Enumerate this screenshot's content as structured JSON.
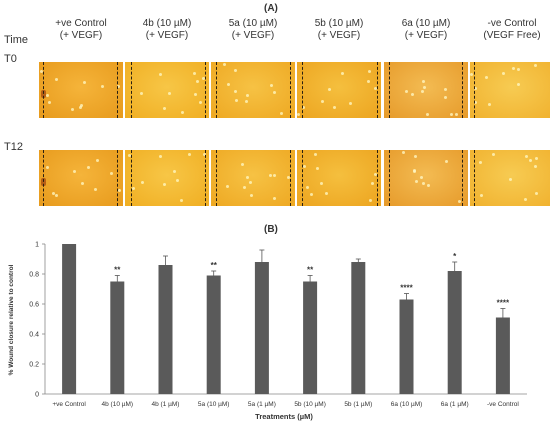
{
  "panel_a": {
    "label": "(A)",
    "time_header": "Time",
    "rows": [
      {
        "label": "T0"
      },
      {
        "label": "T12"
      }
    ],
    "columns": [
      {
        "line1": "+ve Control",
        "line2": "(+ VEGF)"
      },
      {
        "line1": "4b (10 µM)",
        "line2": "(+ VEGF)"
      },
      {
        "line1": "5a (10 µM)",
        "line2": "(+ VEGF)"
      },
      {
        "line1": "5b (10 µM)",
        "line2": "(+ VEGF)"
      },
      {
        "line1": "6a (10 µM)",
        "line2": "(+ VEGF)"
      },
      {
        "line1": "-ve Control",
        "line2": "(VEGF Free)"
      }
    ]
  },
  "panel_b": {
    "label": "(B)"
  },
  "chart_data": {
    "type": "bar",
    "title": "",
    "xlabel": "Treatments (µM)",
    "ylabel": "% Wound closure relative to control",
    "ylim": [
      0,
      1
    ],
    "yticks": [
      "0",
      "0.2",
      "0.4",
      "0.6",
      "0.8",
      "1"
    ],
    "categories": [
      "+ve Control",
      "4b (10 µM)",
      "4b (1 µM)",
      "5a (10 µM)",
      "5a (1 µM)",
      "5b (10 µM)",
      "5b (1 µM)",
      "6a (10 µM)",
      "6a (1 µM)",
      "-ve Control"
    ],
    "values": [
      1.0,
      0.75,
      0.86,
      0.79,
      0.88,
      0.75,
      0.88,
      0.63,
      0.82,
      0.51
    ],
    "errors": [
      0.0,
      0.04,
      0.06,
      0.03,
      0.08,
      0.04,
      0.02,
      0.04,
      0.06,
      0.06
    ],
    "significance": [
      "",
      "**",
      "",
      "**",
      "",
      "**",
      "",
      "****",
      "*",
      "****"
    ],
    "bar_color": "#5a5a5a",
    "grid": false,
    "legend": "none"
  }
}
